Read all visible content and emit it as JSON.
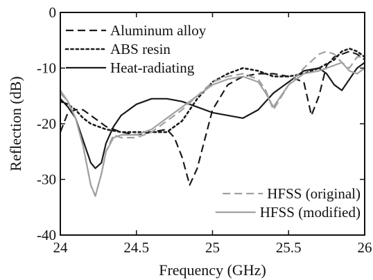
{
  "chart_data": {
    "type": "line",
    "xlabel": "Frequency (GHz)",
    "ylabel": "Reflection (dB)",
    "xlim": [
      24,
      26
    ],
    "ylim": [
      -40,
      0
    ],
    "xticks": [
      24,
      24.5,
      25,
      25.5,
      26
    ],
    "yticks": [
      0,
      -10,
      -20,
      -30,
      -40
    ],
    "xtick_labels": [
      "24",
      "24.5",
      "25",
      "25.5",
      "26"
    ],
    "ytick_labels": [
      "0",
      "-10",
      "-20",
      "-30",
      "-40"
    ],
    "grid": false,
    "legends": [
      {
        "placement": "top-left",
        "entries": [
          "Aluminum alloy",
          "ABS resin",
          "Heat-radiating"
        ]
      },
      {
        "placement": "bottom-right",
        "entries": [
          "HFSS (original)",
          "HFSS (modified)"
        ]
      }
    ],
    "series": [
      {
        "name": "Aluminum alloy",
        "color": "#1a1a1a",
        "style": "dashed",
        "x": [
          24.0,
          24.05,
          24.1,
          24.15,
          24.2,
          24.3,
          24.4,
          24.5,
          24.6,
          24.7,
          24.75,
          24.8,
          24.85,
          24.9,
          25.0,
          25.1,
          25.2,
          25.3,
          25.4,
          25.5,
          25.6,
          25.65,
          25.7,
          25.75,
          25.8,
          25.85,
          25.9,
          25.95,
          26.0
        ],
        "y": [
          -21.5,
          -18.0,
          -17.5,
          -17.5,
          -18.5,
          -20.5,
          -21.5,
          -22.0,
          -21.5,
          -21.0,
          -22.5,
          -26.0,
          -31.0,
          -28.0,
          -17.5,
          -13.0,
          -11.5,
          -11.0,
          -11.0,
          -11.5,
          -12.5,
          -18.5,
          -15.0,
          -9.5,
          -8.0,
          -7.5,
          -7.0,
          -7.5,
          -8.5
        ]
      },
      {
        "name": "ABS resin",
        "color": "#1a1a1a",
        "style": "dotted",
        "x": [
          24.0,
          24.05,
          24.1,
          24.15,
          24.2,
          24.3,
          24.4,
          24.5,
          24.6,
          24.7,
          24.8,
          24.9,
          25.0,
          25.1,
          25.2,
          25.3,
          25.4,
          25.5,
          25.6,
          25.7,
          25.8,
          25.85,
          25.9,
          25.95,
          26.0
        ],
        "y": [
          -16.0,
          -16.5,
          -17.5,
          -19.0,
          -20.0,
          -21.0,
          -21.5,
          -21.5,
          -21.5,
          -21.5,
          -19.5,
          -15.5,
          -12.5,
          -11.0,
          -10.0,
          -10.5,
          -11.5,
          -11.5,
          -11.0,
          -10.0,
          -8.5,
          -7.0,
          -6.5,
          -7.0,
          -8.0
        ]
      },
      {
        "name": "Heat-radiating",
        "color": "#1a1a1a",
        "style": "solid",
        "x": [
          24.0,
          24.05,
          24.1,
          24.15,
          24.2,
          24.23,
          24.27,
          24.3,
          24.35,
          24.4,
          24.5,
          24.6,
          24.7,
          24.8,
          24.9,
          25.0,
          25.1,
          25.2,
          25.3,
          25.4,
          25.5,
          25.6,
          25.7,
          25.75,
          25.8,
          25.85,
          25.9,
          25.95,
          26.0
        ],
        "y": [
          -15.5,
          -17.0,
          -19.0,
          -23.0,
          -27.0,
          -28.0,
          -27.0,
          -23.5,
          -20.5,
          -18.5,
          -16.5,
          -15.5,
          -15.5,
          -16.0,
          -17.0,
          -18.0,
          -18.5,
          -19.0,
          -17.5,
          -14.5,
          -12.5,
          -10.5,
          -10.0,
          -11.0,
          -13.0,
          -14.0,
          -12.0,
          -10.0,
          -9.0
        ]
      },
      {
        "name": "HFSS (original)",
        "color": "#a0a0a0",
        "style": "dashed",
        "x": [
          24.0,
          24.05,
          24.1,
          24.15,
          24.2,
          24.23,
          24.27,
          24.3,
          24.35,
          24.4,
          24.5,
          24.6,
          24.7,
          24.8,
          24.9,
          25.0,
          25.1,
          25.2,
          25.3,
          25.35,
          25.4,
          25.5,
          25.6,
          25.7,
          25.75,
          25.8,
          25.85,
          25.9,
          25.95,
          26.0
        ],
        "y": [
          -14.5,
          -16.0,
          -19.0,
          -24.0,
          -31.0,
          -33.0,
          -29.0,
          -25.0,
          -22.0,
          -22.5,
          -22.5,
          -21.5,
          -19.5,
          -17.5,
          -15.0,
          -12.5,
          -11.5,
          -11.0,
          -12.0,
          -14.0,
          -17.5,
          -13.0,
          -10.0,
          -7.5,
          -7.0,
          -7.5,
          -9.0,
          -10.0,
          -8.0,
          -8.0
        ]
      },
      {
        "name": "HFSS (modified)",
        "color": "#a0a0a0",
        "style": "solid",
        "x": [
          24.0,
          24.05,
          24.1,
          24.15,
          24.2,
          24.23,
          24.27,
          24.3,
          24.35,
          24.4,
          24.5,
          24.6,
          24.7,
          24.8,
          24.9,
          25.0,
          25.1,
          25.2,
          25.3,
          25.35,
          25.4,
          25.5,
          25.6,
          25.7,
          25.8,
          25.85,
          25.9,
          25.95,
          26.0
        ],
        "y": [
          -14.0,
          -16.0,
          -19.0,
          -24.0,
          -31.0,
          -33.0,
          -29.0,
          -25.0,
          -22.5,
          -22.0,
          -22.0,
          -21.0,
          -19.0,
          -17.0,
          -15.0,
          -13.0,
          -12.0,
          -11.5,
          -12.5,
          -14.5,
          -17.0,
          -13.0,
          -11.0,
          -10.5,
          -9.5,
          -9.0,
          -10.5,
          -11.0,
          -10.0
        ]
      }
    ]
  }
}
